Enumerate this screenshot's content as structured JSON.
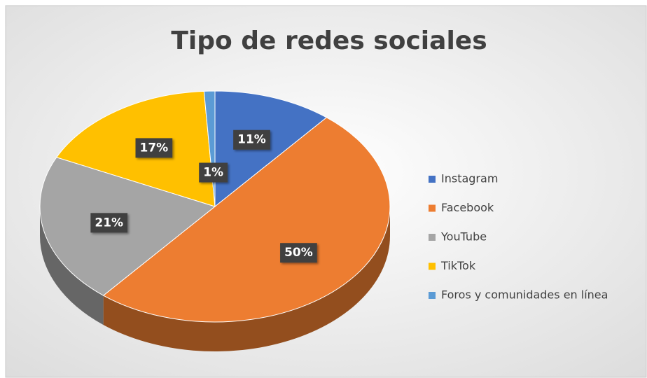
{
  "chart_data": {
    "type": "pie",
    "title": "Tipo de redes sociales",
    "categories": [
      "Instagram",
      "Facebook",
      "YouTube",
      "TikTok",
      "Foros y comunidades en línea"
    ],
    "values": [
      11,
      50,
      21,
      17,
      1
    ],
    "value_labels": [
      "11%",
      "50%",
      "21%",
      "17%",
      "1%"
    ],
    "colors": [
      "#4472c4",
      "#ed7d31",
      "#a5a5a5",
      "#ffc000",
      "#5b9bd5"
    ],
    "legend": "right"
  }
}
